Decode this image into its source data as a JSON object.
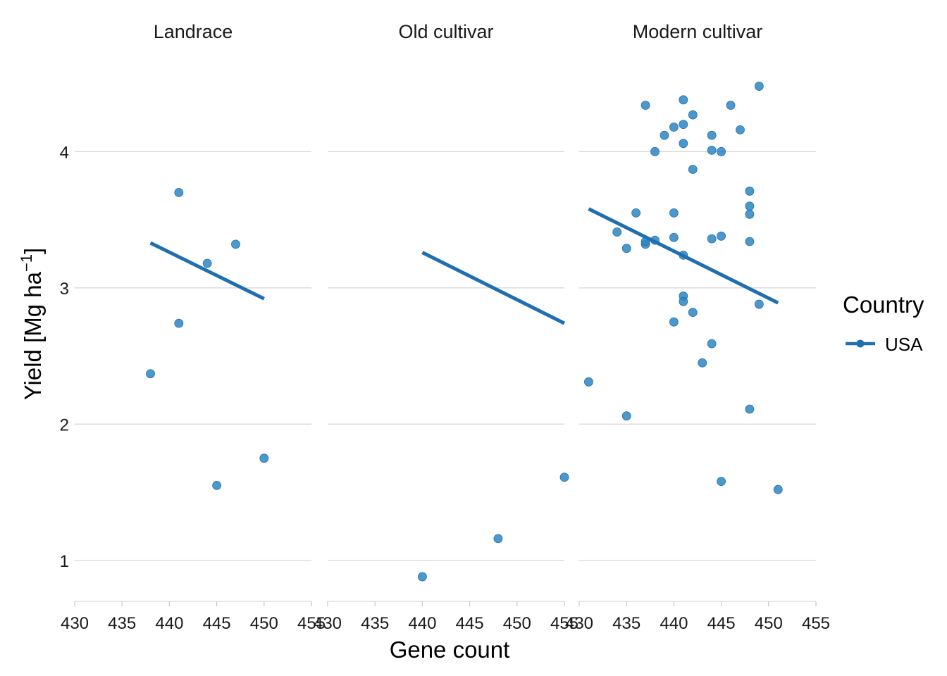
{
  "chart_data": {
    "type": "scatter",
    "facets": [
      "Landrace",
      "Old cultivar",
      "Modern cultivar"
    ],
    "xlabel": "Gene count",
    "ylabel": "Yield [Mg ha",
    "ylabel_sup": "−1",
    "ylabel_close": "]",
    "xlim": [
      430,
      455
    ],
    "ylim": [
      0.72,
      4.72
    ],
    "x_ticks": [
      430,
      435,
      440,
      445,
      450,
      455
    ],
    "y_ticks": [
      1,
      2,
      3,
      4
    ],
    "grid": "horizontal",
    "legend": {
      "title": "Country",
      "position": "right",
      "entries": [
        {
          "label": "USA",
          "color": "#1f77b4"
        }
      ]
    },
    "colors": {
      "point": "#2e86c1",
      "line": "#1f6fb0",
      "grid": "#d9d9d9"
    },
    "panels": [
      {
        "facet": "Landrace",
        "points": [
          {
            "x": 438,
            "y": 2.37
          },
          {
            "x": 441,
            "y": 3.7
          },
          {
            "x": 441,
            "y": 2.74
          },
          {
            "x": 444,
            "y": 3.18
          },
          {
            "x": 445,
            "y": 1.55
          },
          {
            "x": 447,
            "y": 3.32
          },
          {
            "x": 450,
            "y": 1.75
          }
        ],
        "trend": {
          "x": [
            438,
            450
          ],
          "y": [
            3.33,
            2.92
          ]
        }
      },
      {
        "facet": "Old cultivar",
        "points": [
          {
            "x": 440,
            "y": 0.88
          },
          {
            "x": 448,
            "y": 1.16
          },
          {
            "x": 455,
            "y": 1.61
          }
        ],
        "trend": {
          "x": [
            440,
            455
          ],
          "y": [
            3.26,
            2.74
          ]
        }
      },
      {
        "facet": "Modern cultivar",
        "points": [
          {
            "x": 431,
            "y": 2.31
          },
          {
            "x": 434,
            "y": 3.41
          },
          {
            "x": 435,
            "y": 3.29
          },
          {
            "x": 435,
            "y": 2.06
          },
          {
            "x": 436,
            "y": 3.55
          },
          {
            "x": 437,
            "y": 4.34
          },
          {
            "x": 437,
            "y": 3.32
          },
          {
            "x": 437,
            "y": 3.34
          },
          {
            "x": 438,
            "y": 4.0
          },
          {
            "x": 438,
            "y": 3.35
          },
          {
            "x": 439,
            "y": 4.12
          },
          {
            "x": 440,
            "y": 4.18
          },
          {
            "x": 440,
            "y": 3.55
          },
          {
            "x": 440,
            "y": 3.37
          },
          {
            "x": 440,
            "y": 2.75
          },
          {
            "x": 441,
            "y": 4.38
          },
          {
            "x": 441,
            "y": 4.2
          },
          {
            "x": 441,
            "y": 4.06
          },
          {
            "x": 441,
            "y": 3.24
          },
          {
            "x": 441,
            "y": 2.94
          },
          {
            "x": 441,
            "y": 2.9
          },
          {
            "x": 442,
            "y": 4.27
          },
          {
            "x": 442,
            "y": 3.87
          },
          {
            "x": 442,
            "y": 2.82
          },
          {
            "x": 443,
            "y": 2.45
          },
          {
            "x": 444,
            "y": 4.12
          },
          {
            "x": 444,
            "y": 4.01
          },
          {
            "x": 444,
            "y": 3.36
          },
          {
            "x": 444,
            "y": 2.59
          },
          {
            "x": 445,
            "y": 4.0
          },
          {
            "x": 445,
            "y": 3.38
          },
          {
            "x": 445,
            "y": 1.58
          },
          {
            "x": 446,
            "y": 4.34
          },
          {
            "x": 447,
            "y": 4.16
          },
          {
            "x": 448,
            "y": 3.71
          },
          {
            "x": 448,
            "y": 3.6
          },
          {
            "x": 448,
            "y": 3.54
          },
          {
            "x": 448,
            "y": 3.34
          },
          {
            "x": 448,
            "y": 2.11
          },
          {
            "x": 449,
            "y": 4.48
          },
          {
            "x": 449,
            "y": 2.88
          },
          {
            "x": 451,
            "y": 1.52
          }
        ],
        "trend": {
          "x": [
            431,
            451
          ],
          "y": [
            3.58,
            2.89
          ]
        }
      }
    ]
  }
}
